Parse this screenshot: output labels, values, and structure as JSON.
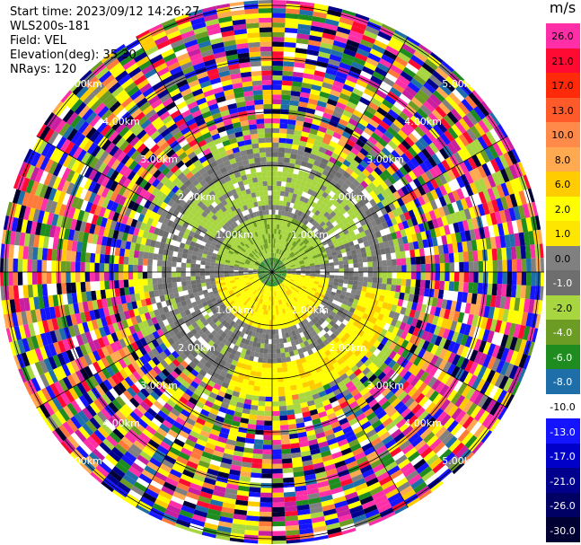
{
  "header": {
    "start_time": "Start time: 2023/09/12 14:26:27",
    "instrument": "WLS200s-181",
    "field": "Field: VEL",
    "elevation": "Elevation(deg): 35.30",
    "nrays": "NRays: 120"
  },
  "colorbar": {
    "unit": "m/s",
    "levels": [
      {
        "label": "26.0",
        "color": "#ff2fa8",
        "text": "#000000"
      },
      {
        "label": "21.0",
        "color": "#ff0a32",
        "text": "#000000"
      },
      {
        "label": "17.0",
        "color": "#ff2a0a",
        "text": "#000000"
      },
      {
        "label": "13.0",
        "color": "#ff5a2a",
        "text": "#000000"
      },
      {
        "label": "10.0",
        "color": "#ff8a4a",
        "text": "#000000"
      },
      {
        "label": "8.0",
        "color": "#ffaa50",
        "text": "#000000"
      },
      {
        "label": "6.0",
        "color": "#ffcc00",
        "text": "#000000"
      },
      {
        "label": "2.0",
        "color": "#ffff00",
        "text": "#000000"
      },
      {
        "label": "1.0",
        "color": "#ffe600",
        "text": "#000000"
      },
      {
        "label": "0.0",
        "color": "#808080",
        "text": "#000000"
      },
      {
        "label": "-1.0",
        "color": "#6e6e6e",
        "text": "#ffffff"
      },
      {
        "label": "-2.0",
        "color": "#a8d640",
        "text": "#000000"
      },
      {
        "label": "-4.0",
        "color": "#6c9c24",
        "text": "#ffffff"
      },
      {
        "label": "-6.0",
        "color": "#1e8c1e",
        "text": "#ffffff"
      },
      {
        "label": "-8.0",
        "color": "#1e6eaa",
        "text": "#ffffff"
      },
      {
        "label": "-10.0",
        "color": "#ffffff",
        "text": "#000000"
      },
      {
        "label": "-13.0",
        "color": "#1414ff",
        "text": "#ffffff"
      },
      {
        "label": "-17.0",
        "color": "#0000c8",
        "text": "#ffffff"
      },
      {
        "label": "-21.0",
        "color": "#00008c",
        "text": "#ffffff"
      },
      {
        "label": "-26.0",
        "color": "#000064",
        "text": "#ffffff"
      },
      {
        "label": "-30.0",
        "color": "#000032",
        "text": "#ffffff"
      }
    ]
  },
  "chart_data": {
    "type": "heatmap",
    "title": "",
    "projection": "polar-ppi",
    "nrays": 120,
    "range_rings_km": [
      1,
      2,
      3,
      4,
      5
    ],
    "range_ring_labels": [
      "1.00km",
      "2.00km",
      "3.00km",
      "4.00km",
      "5.00km"
    ],
    "max_range_km": 5.1,
    "spokes_deg": [
      0,
      30,
      60,
      90,
      120,
      150,
      180,
      210,
      240,
      270,
      300,
      330
    ],
    "velocity_unit": "m/s",
    "velocity_range": [
      -30,
      26
    ],
    "regions": [
      {
        "r_km": [
          0,
          0.3
        ],
        "description_values": [
          -6,
          -4
        ]
      },
      {
        "r_km": [
          0.3,
          1.3
        ],
        "description_values": [
          0,
          -2,
          1
        ]
      },
      {
        "r_km": [
          1.3,
          2.3
        ],
        "description_values": [
          -2,
          0,
          2
        ]
      },
      {
        "r_km": [
          2.3,
          5.1
        ],
        "description_values": "noise"
      }
    ]
  }
}
